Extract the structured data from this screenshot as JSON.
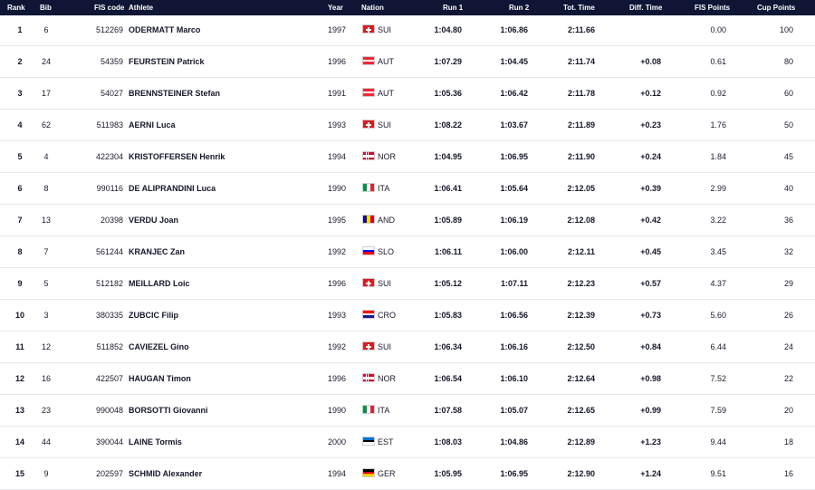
{
  "table": {
    "headers": {
      "rank": "Rank",
      "bib": "Bib",
      "fis_code": "FIS code",
      "athlete": "Athlete",
      "year": "Year",
      "nation": "Nation",
      "run1": "Run 1",
      "run2": "Run 2",
      "tot_time": "Tot. Time",
      "diff_time": "Diff. Time",
      "fis_points": "FIS Points",
      "cup_points": "Cup Points"
    },
    "rows": [
      {
        "rank": "1",
        "bib": "6",
        "fis_code": "512269",
        "athlete": "ODERMATT Marco",
        "year": "1997",
        "nation": "SUI",
        "run1": "1:04.80",
        "run2": "1:06.86",
        "tot_time": "2:11.66",
        "diff_time": "",
        "fis_points": "0.00",
        "cup_points": "100"
      },
      {
        "rank": "2",
        "bib": "24",
        "fis_code": "54359",
        "athlete": "FEURSTEIN Patrick",
        "year": "1996",
        "nation": "AUT",
        "run1": "1:07.29",
        "run2": "1:04.45",
        "tot_time": "2:11.74",
        "diff_time": "+0.08",
        "fis_points": "0.61",
        "cup_points": "80"
      },
      {
        "rank": "3",
        "bib": "17",
        "fis_code": "54027",
        "athlete": "BRENNSTEINER Stefan",
        "year": "1991",
        "nation": "AUT",
        "run1": "1:05.36",
        "run2": "1:06.42",
        "tot_time": "2:11.78",
        "diff_time": "+0.12",
        "fis_points": "0.92",
        "cup_points": "60"
      },
      {
        "rank": "4",
        "bib": "62",
        "fis_code": "511983",
        "athlete": "AERNI Luca",
        "year": "1993",
        "nation": "SUI",
        "run1": "1:08.22",
        "run2": "1:03.67",
        "tot_time": "2:11.89",
        "diff_time": "+0.23",
        "fis_points": "1.76",
        "cup_points": "50"
      },
      {
        "rank": "5",
        "bib": "4",
        "fis_code": "422304",
        "athlete": "KRISTOFFERSEN Henrik",
        "year": "1994",
        "nation": "NOR",
        "run1": "1:04.95",
        "run2": "1:06.95",
        "tot_time": "2:11.90",
        "diff_time": "+0.24",
        "fis_points": "1.84",
        "cup_points": "45"
      },
      {
        "rank": "6",
        "bib": "8",
        "fis_code": "990116",
        "athlete": "DE ALIPRANDINI Luca",
        "year": "1990",
        "nation": "ITA",
        "run1": "1:06.41",
        "run2": "1:05.64",
        "tot_time": "2:12.05",
        "diff_time": "+0.39",
        "fis_points": "2.99",
        "cup_points": "40"
      },
      {
        "rank": "7",
        "bib": "13",
        "fis_code": "20398",
        "athlete": "VERDU Joan",
        "year": "1995",
        "nation": "AND",
        "run1": "1:05.89",
        "run2": "1:06.19",
        "tot_time": "2:12.08",
        "diff_time": "+0.42",
        "fis_points": "3.22",
        "cup_points": "36"
      },
      {
        "rank": "8",
        "bib": "7",
        "fis_code": "561244",
        "athlete": "KRANJEC Zan",
        "year": "1992",
        "nation": "SLO",
        "run1": "1:06.11",
        "run2": "1:06.00",
        "tot_time": "2:12.11",
        "diff_time": "+0.45",
        "fis_points": "3.45",
        "cup_points": "32"
      },
      {
        "rank": "9",
        "bib": "5",
        "fis_code": "512182",
        "athlete": "MEILLARD Loic",
        "year": "1996",
        "nation": "SUI",
        "run1": "1:05.12",
        "run2": "1:07.11",
        "tot_time": "2:12.23",
        "diff_time": "+0.57",
        "fis_points": "4.37",
        "cup_points": "29"
      },
      {
        "rank": "10",
        "bib": "3",
        "fis_code": "380335",
        "athlete": "ZUBCIC Filip",
        "year": "1993",
        "nation": "CRO",
        "run1": "1:05.83",
        "run2": "1:06.56",
        "tot_time": "2:12.39",
        "diff_time": "+0.73",
        "fis_points": "5.60",
        "cup_points": "26"
      },
      {
        "rank": "11",
        "bib": "12",
        "fis_code": "511852",
        "athlete": "CAVIEZEL Gino",
        "year": "1992",
        "nation": "SUI",
        "run1": "1:06.34",
        "run2": "1:06.16",
        "tot_time": "2:12.50",
        "diff_time": "+0.84",
        "fis_points": "6.44",
        "cup_points": "24"
      },
      {
        "rank": "12",
        "bib": "16",
        "fis_code": "422507",
        "athlete": "HAUGAN Timon",
        "year": "1996",
        "nation": "NOR",
        "run1": "1:06.54",
        "run2": "1:06.10",
        "tot_time": "2:12.64",
        "diff_time": "+0.98",
        "fis_points": "7.52",
        "cup_points": "22"
      },
      {
        "rank": "13",
        "bib": "23",
        "fis_code": "990048",
        "athlete": "BORSOTTI Giovanni",
        "year": "1990",
        "nation": "ITA",
        "run1": "1:07.58",
        "run2": "1:05.07",
        "tot_time": "2:12.65",
        "diff_time": "+0.99",
        "fis_points": "7.59",
        "cup_points": "20"
      },
      {
        "rank": "14",
        "bib": "44",
        "fis_code": "390044",
        "athlete": "LAINE Tormis",
        "year": "2000",
        "nation": "EST",
        "run1": "1:08.03",
        "run2": "1:04.86",
        "tot_time": "2:12.89",
        "diff_time": "+1.23",
        "fis_points": "9.44",
        "cup_points": "18"
      },
      {
        "rank": "15",
        "bib": "9",
        "fis_code": "202597",
        "athlete": "SCHMID Alexander",
        "year": "1994",
        "nation": "GER",
        "run1": "1:05.95",
        "run2": "1:06.95",
        "tot_time": "2:12.90",
        "diff_time": "+1.24",
        "fis_points": "9.51",
        "cup_points": "16"
      }
    ]
  },
  "colors": {
    "header_bg": "#0f1535",
    "header_text": "#ffffff",
    "row_border": "#e8e8ec",
    "text": "#14162b"
  },
  "flag_icons": {
    "SUI": "swiss-flag-icon",
    "AUT": "austria-flag-icon",
    "NOR": "norway-flag-icon",
    "ITA": "italy-flag-icon",
    "AND": "andorra-flag-icon",
    "SLO": "slovenia-flag-icon",
    "CRO": "croatia-flag-icon",
    "EST": "estonia-flag-icon",
    "GER": "germany-flag-icon"
  }
}
